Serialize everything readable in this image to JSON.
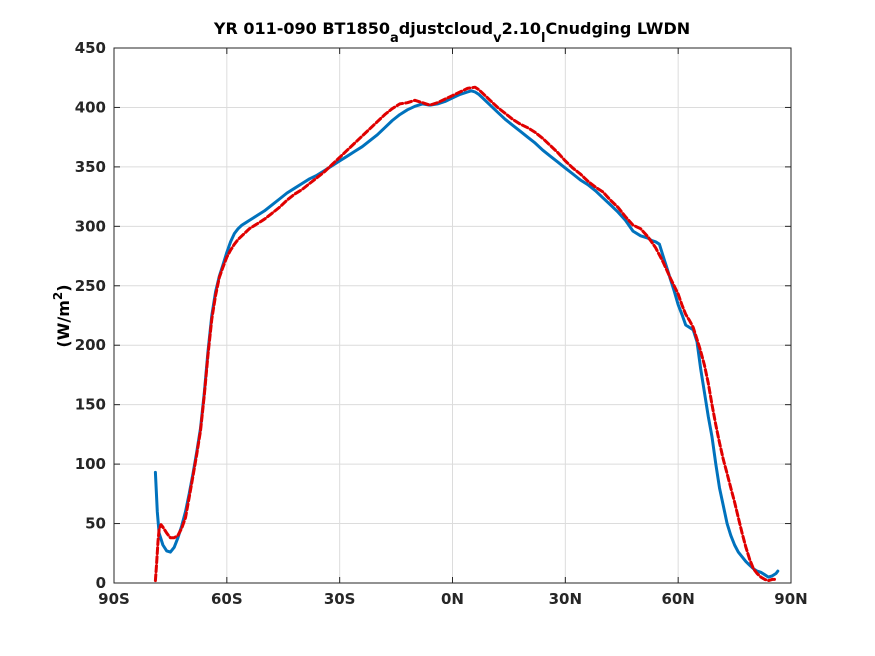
{
  "chart_data": {
    "type": "line",
    "title": {
      "main": "YR 011-090 BT1850",
      "sub1": "a",
      "mid1": "djustcloud",
      "sub2": "v",
      "mid2": "2.10",
      "sub3": "l",
      "end": "Cnudging LWDN"
    },
    "ylabel": {
      "base": "(W/m",
      "sup": "2",
      "close": ")"
    },
    "xlim": [
      -90,
      90
    ],
    "ylim": [
      0,
      450
    ],
    "x_ticks": [
      {
        "value": -90,
        "label": "90S"
      },
      {
        "value": -60,
        "label": "60S"
      },
      {
        "value": -30,
        "label": "30S"
      },
      {
        "value": 0,
        "label": "0N"
      },
      {
        "value": 30,
        "label": "30N"
      },
      {
        "value": 60,
        "label": "60N"
      },
      {
        "value": 90,
        "label": "90N"
      }
    ],
    "y_ticks": [
      {
        "value": 0,
        "label": "0"
      },
      {
        "value": 50,
        "label": "50"
      },
      {
        "value": 100,
        "label": "100"
      },
      {
        "value": 150,
        "label": "150"
      },
      {
        "value": 200,
        "label": "200"
      },
      {
        "value": 250,
        "label": "250"
      },
      {
        "value": 300,
        "label": "300"
      },
      {
        "value": 350,
        "label": "350"
      },
      {
        "value": 400,
        "label": "400"
      },
      {
        "value": 450,
        "label": "450"
      }
    ],
    "grid": true,
    "series": [
      {
        "color": "#0072BD",
        "style": "solid",
        "x": [
          -79,
          -78.5,
          -78,
          -77,
          -76,
          -75,
          -74,
          -73,
          -72,
          -71,
          -70,
          -69,
          -68,
          -67,
          -66,
          -65,
          -64,
          -63,
          -62,
          -61,
          -60,
          -59,
          -58,
          -57,
          -56,
          -55,
          -54,
          -53,
          -52,
          -50,
          -48,
          -46,
          -44,
          -42,
          -40,
          -38,
          -36,
          -34,
          -32,
          -30,
          -28,
          -26,
          -24,
          -22,
          -20,
          -18,
          -16,
          -14,
          -12,
          -10,
          -8,
          -6,
          -4,
          -2,
          0,
          2,
          4,
          5,
          6,
          7,
          8,
          10,
          12,
          14,
          16,
          18,
          20,
          22,
          24,
          26,
          28,
          30,
          32,
          34,
          36,
          38,
          40,
          42,
          44,
          46,
          48,
          50,
          52,
          53,
          54,
          55,
          56,
          57,
          58,
          59,
          60,
          61,
          62,
          63,
          64,
          65,
          66,
          67,
          68,
          69,
          70,
          71,
          72,
          73,
          74,
          75,
          76,
          77,
          78,
          79,
          80,
          81,
          82,
          83,
          84,
          85,
          86,
          86.5
        ],
        "y": [
          93,
          60,
          42,
          32,
          27,
          26,
          30,
          38,
          48,
          60,
          75,
          92,
          110,
          130,
          160,
          195,
          225,
          245,
          258,
          268,
          278,
          287,
          294,
          298,
          301,
          303,
          305,
          307,
          309,
          313,
          318,
          323,
          328,
          332,
          336,
          340,
          343,
          347,
          351,
          355,
          359,
          363,
          367,
          372,
          377,
          383,
          389,
          394,
          398,
          401,
          403,
          402,
          403,
          405,
          408,
          411,
          413,
          414,
          413,
          411,
          408,
          402,
          396,
          390,
          385,
          380,
          375,
          370,
          364,
          359,
          354,
          349,
          344,
          339,
          335,
          330,
          324,
          318,
          312,
          305,
          296,
          292,
          290,
          288,
          287,
          285,
          275,
          265,
          255,
          245,
          234,
          226,
          217,
          215,
          213,
          203,
          180,
          160,
          140,
          123,
          100,
          80,
          65,
          50,
          40,
          32,
          26,
          22,
          18,
          15,
          12,
          10,
          9,
          7,
          5,
          6,
          8,
          10
        ]
      },
      {
        "color": "#E00000",
        "style": "dashed",
        "x": [
          -79,
          -78.7,
          -78.3,
          -78,
          -77.5,
          -77,
          -76,
          -75,
          -74,
          -73,
          -72,
          -71,
          -70,
          -69,
          -68,
          -67,
          -66,
          -65,
          -64,
          -63,
          -62,
          -61,
          -60,
          -59,
          -58,
          -57,
          -56,
          -55,
          -54,
          -52,
          -50,
          -48,
          -46,
          -44,
          -42,
          -40,
          -38,
          -36,
          -34,
          -32,
          -30,
          -28,
          -26,
          -24,
          -22,
          -20,
          -18,
          -16,
          -14,
          -12,
          -10,
          -8,
          -6,
          -4,
          -2,
          0,
          2,
          4,
          6,
          7,
          8,
          10,
          12,
          14,
          16,
          18,
          20,
          22,
          24,
          26,
          28,
          30,
          32,
          34,
          36,
          38,
          40,
          42,
          44,
          46,
          48,
          50,
          52,
          54,
          56,
          58,
          60,
          61,
          62,
          63,
          64,
          65,
          66,
          67,
          68,
          69,
          70,
          71,
          72,
          73,
          74,
          75,
          76,
          77,
          78,
          79,
          80,
          81,
          82,
          83,
          84,
          85,
          86
        ],
        "y": [
          2,
          15,
          35,
          45,
          49,
          47,
          42,
          38,
          38,
          40,
          46,
          55,
          72,
          90,
          108,
          128,
          158,
          192,
          222,
          242,
          257,
          266,
          274,
          280,
          285,
          289,
          292,
          295,
          298,
          302,
          306,
          311,
          316,
          322,
          327,
          331,
          336,
          341,
          346,
          352,
          358,
          364,
          370,
          376,
          382,
          388,
          394,
          399,
          403,
          404,
          406,
          404,
          402,
          404,
          407,
          410,
          413,
          416,
          417,
          415,
          412,
          406,
          400,
          395,
          390,
          386,
          383,
          379,
          374,
          368,
          362,
          355,
          349,
          344,
          338,
          333,
          329,
          322,
          316,
          308,
          301,
          298,
          291,
          282,
          270,
          256,
          243,
          234,
          226,
          221,
          215,
          205,
          195,
          183,
          168,
          150,
          133,
          118,
          104,
          92,
          80,
          68,
          55,
          42,
          30,
          20,
          12,
          8,
          5,
          3,
          2,
          3,
          3
        ]
      }
    ]
  }
}
